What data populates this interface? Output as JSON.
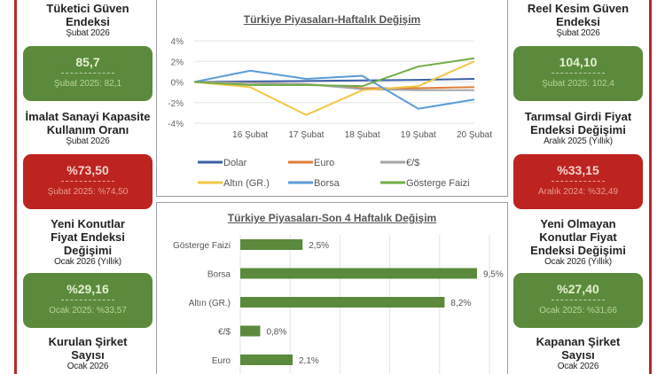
{
  "left_column": [
    {
      "title": "Tüketici Güven Endeksi",
      "title_lines": [
        "Tüketici Güven",
        "Endeksi"
      ],
      "period": "Şubat 2026",
      "value": "85,7",
      "previous": "Şubat 2025: 82,1",
      "status": "green"
    },
    {
      "title": "İmalat Sanayi Kapasite Kullanım Oranı",
      "title_lines": [
        "İmalat Sanayi Kapasite",
        "Kullanım Oranı"
      ],
      "period": "Şubat 2026",
      "value": "%73,50",
      "previous": "Şubat 2025: %74,50",
      "status": "red"
    },
    {
      "title": "Yeni Konutlar Fiyat Endeksi Değişimi",
      "title_lines": [
        "Yeni Konutlar",
        "Fiyat Endeksi",
        "Değişimi"
      ],
      "period": "Ocak 2026 (Yıllık)",
      "value": "%29,16",
      "previous": "Ocak 2025: %33,57",
      "status": "green"
    },
    {
      "title": "Kurulan Şirket Sayısı",
      "title_lines": [
        "Kurulan Şirket",
        "Sayısı"
      ],
      "period": "Ocak 2026"
    }
  ],
  "right_column": [
    {
      "title": "Reel Kesim Güven Endeksi",
      "title_lines": [
        "Reel Kesim Güven",
        "Endeksi"
      ],
      "period": "Şubat 2026",
      "value": "104,10",
      "previous": "Şubat 2025: 102,4",
      "status": "green"
    },
    {
      "title": "Tarımsal Girdi Fiyat Endeksi Değişimi",
      "title_lines": [
        "Tarımsal Girdi Fiyat",
        "Endeksi Değişimi"
      ],
      "period": "Aralık 2025 (Yıllık)",
      "value": "%33,15",
      "previous": "Aralık 2024: %32,49",
      "status": "red"
    },
    {
      "title": "Yeni Olmayan Konutlar Fiyat Endeksi Değişimi",
      "title_lines": [
        "Yeni Olmayan",
        "Konutlar Fiyat",
        "Endeksi Değişimi"
      ],
      "period": "Ocak 2026 (Yıllık)",
      "value": "%27,40",
      "previous": "Ocak 2025: %31,66",
      "status": "green"
    },
    {
      "title": "Kapanan Şirket Sayısı",
      "title_lines": [
        "Kapanan Şirket",
        "Sayısı"
      ],
      "period": "Ocak 2026"
    }
  ],
  "colors": {
    "green_card": "#5b8a3c",
    "red_card": "#bd231f",
    "border_red": "#b8282a",
    "bar": "#5b8a3c"
  },
  "chart_data": [
    {
      "type": "line",
      "title": "Türkiye Piyasaları-Haftalık Değişim",
      "x": [
        "",
        "16 Şubat",
        "17 Şubat",
        "18 Şubat",
        "19 Şubat",
        "20 Şubat"
      ],
      "ylim": [
        -4,
        4
      ],
      "yticks": [
        "4%",
        "2%",
        "0%",
        "-2%",
        "-4%"
      ],
      "grid": true,
      "legend_position": "bottom",
      "series": [
        {
          "name": "Dolar",
          "color": "#3a5fa8",
          "values": [
            0,
            0.05,
            0.1,
            0.15,
            0.2,
            0.3
          ]
        },
        {
          "name": "Euro",
          "color": "#e07b39",
          "values": [
            0,
            -0.1,
            -0.2,
            -0.6,
            -0.6,
            -0.5
          ]
        },
        {
          "name": "€/$",
          "color": "#a6a6a6",
          "values": [
            0,
            -0.1,
            -0.2,
            -0.7,
            -0.8,
            -0.8
          ]
        },
        {
          "name": "Altın (GR.)",
          "color": "#f2c744",
          "values": [
            0,
            -0.5,
            -3.2,
            -0.8,
            -0.4,
            2.0
          ]
        },
        {
          "name": "Borsa",
          "color": "#5b9bd5",
          "values": [
            0,
            1.1,
            0.3,
            0.6,
            -2.6,
            -1.7
          ]
        },
        {
          "name": "Gösterge Faizi",
          "color": "#70ad47",
          "values": [
            0,
            -0.3,
            -0.3,
            -0.4,
            1.5,
            2.3
          ]
        }
      ]
    },
    {
      "type": "bar",
      "orientation": "horizontal",
      "title": "Türkiye Piyasaları-Son 4 Haftalık Değişim",
      "categories": [
        "Gösterge Faizi",
        "Borsa",
        "Altın (GR.)",
        "€/$",
        "Euro"
      ],
      "values": [
        2.5,
        9.5,
        8.2,
        0.8,
        2.1
      ],
      "labels": [
        "2,5%",
        "9,5%",
        "8,2%",
        "0,8%",
        "2,1%"
      ],
      "xlim": [
        0,
        10
      ],
      "grid": true
    }
  ]
}
